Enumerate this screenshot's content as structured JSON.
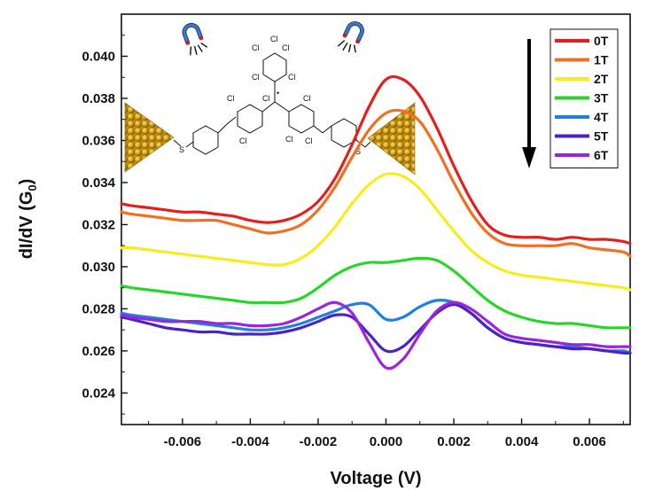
{
  "chart_data": {
    "type": "line",
    "xlabel": "Voltage (V)",
    "ylabel_main": "dI/dV (G",
    "ylabel_sub": "0",
    "ylabel_close": ")",
    "xlim": [
      -0.0078,
      0.0072
    ],
    "ylim": [
      0.0225,
      0.042
    ],
    "x_ticks": [
      -0.006,
      -0.004,
      -0.002,
      0.0,
      0.002,
      0.004,
      0.006
    ],
    "x_tick_labels": [
      "-0.006",
      "-0.004",
      "-0.002",
      "0.000",
      "0.002",
      "0.004",
      "0.006"
    ],
    "y_ticks": [
      0.024,
      0.026,
      0.028,
      0.03,
      0.032,
      0.034,
      0.036,
      0.038,
      0.04
    ],
    "y_tick_labels": [
      "0.024",
      "0.026",
      "0.028",
      "0.030",
      "0.032",
      "0.034",
      "0.036",
      "0.038",
      "0.040"
    ],
    "legend_position": "top-right",
    "arrow": "downward arrow beside legend",
    "x": [
      -0.0078,
      -0.0075,
      -0.007,
      -0.0065,
      -0.006,
      -0.0055,
      -0.005,
      -0.0045,
      -0.004,
      -0.0035,
      -0.003,
      -0.0025,
      -0.002,
      -0.0015,
      -0.001,
      -0.0005,
      0.0,
      0.0005,
      0.001,
      0.0015,
      0.002,
      0.0025,
      0.003,
      0.0035,
      0.004,
      0.0045,
      0.005,
      0.0055,
      0.006,
      0.0065,
      0.007,
      0.0072
    ],
    "series": [
      {
        "name": "0T",
        "color": "#e4201e",
        "values": [
          0.033,
          0.0329,
          0.0328,
          0.0327,
          0.0326,
          0.0326,
          0.0325,
          0.0324,
          0.0322,
          0.0321,
          0.0322,
          0.0325,
          0.0331,
          0.0342,
          0.0358,
          0.0376,
          0.0389,
          0.0389,
          0.0381,
          0.0366,
          0.0348,
          0.0332,
          0.032,
          0.0315,
          0.0314,
          0.0314,
          0.0313,
          0.0314,
          0.0313,
          0.0313,
          0.0312,
          0.0311
        ]
      },
      {
        "name": "1T",
        "color": "#f07022",
        "values": [
          0.0326,
          0.0325,
          0.0324,
          0.0323,
          0.0322,
          0.0322,
          0.0322,
          0.032,
          0.0318,
          0.0316,
          0.0317,
          0.032,
          0.0327,
          0.0338,
          0.0352,
          0.0365,
          0.0373,
          0.0374,
          0.0369,
          0.0356,
          0.034,
          0.0326,
          0.0316,
          0.0311,
          0.031,
          0.031,
          0.031,
          0.0311,
          0.0309,
          0.0308,
          0.0307,
          0.0305
        ]
      },
      {
        "name": "2T",
        "color": "#f9ec1c",
        "values": [
          0.0309,
          0.0309,
          0.0308,
          0.0307,
          0.0306,
          0.0305,
          0.0304,
          0.0303,
          0.0302,
          0.0301,
          0.0301,
          0.0304,
          0.031,
          0.0319,
          0.033,
          0.0339,
          0.0344,
          0.0343,
          0.0337,
          0.0327,
          0.0317,
          0.0308,
          0.0302,
          0.0298,
          0.0296,
          0.0295,
          0.0294,
          0.0293,
          0.0292,
          0.0291,
          0.029,
          0.0289
        ]
      },
      {
        "name": "3T",
        "color": "#2ad52a",
        "values": [
          0.0291,
          0.029,
          0.0289,
          0.0288,
          0.0287,
          0.0286,
          0.0285,
          0.0284,
          0.0283,
          0.0283,
          0.0283,
          0.0285,
          0.029,
          0.0296,
          0.03,
          0.0302,
          0.0302,
          0.0303,
          0.0304,
          0.0303,
          0.0298,
          0.0291,
          0.0284,
          0.0279,
          0.0276,
          0.0274,
          0.0273,
          0.0273,
          0.0272,
          0.0271,
          0.0271,
          0.0271
        ]
      },
      {
        "name": "4T",
        "color": "#2180de",
        "values": [
          0.0278,
          0.0277,
          0.0276,
          0.0275,
          0.0274,
          0.0273,
          0.0272,
          0.0271,
          0.027,
          0.027,
          0.0271,
          0.0273,
          0.0276,
          0.0279,
          0.0282,
          0.0282,
          0.0275,
          0.0276,
          0.0281,
          0.0284,
          0.0283,
          0.0278,
          0.0271,
          0.0266,
          0.0264,
          0.0263,
          0.0262,
          0.0262,
          0.0261,
          0.026,
          0.026,
          0.0259
        ]
      },
      {
        "name": "5T",
        "color": "#4a23c8",
        "values": [
          0.0276,
          0.0275,
          0.0273,
          0.0271,
          0.027,
          0.0269,
          0.0269,
          0.0268,
          0.0268,
          0.0268,
          0.0269,
          0.0271,
          0.0274,
          0.0277,
          0.0276,
          0.0268,
          0.026,
          0.0262,
          0.027,
          0.0278,
          0.0282,
          0.0278,
          0.0271,
          0.0266,
          0.0264,
          0.0263,
          0.0262,
          0.0261,
          0.0261,
          0.026,
          0.0259,
          0.0259
        ]
      },
      {
        "name": "6T",
        "color": "#9b26d9",
        "values": [
          0.0277,
          0.0276,
          0.0275,
          0.0274,
          0.0274,
          0.0274,
          0.0273,
          0.0273,
          0.0272,
          0.0272,
          0.0273,
          0.0276,
          0.028,
          0.0283,
          0.0278,
          0.0264,
          0.0252,
          0.0256,
          0.0268,
          0.0279,
          0.0283,
          0.028,
          0.0274,
          0.0268,
          0.0266,
          0.0265,
          0.0264,
          0.0263,
          0.0263,
          0.0262,
          0.0262,
          0.0262
        ]
      }
    ]
  },
  "inset": {
    "atoms": {
      "chlorine": "Cl",
      "sulfur": "S",
      "radical": "•"
    },
    "icons": [
      "gold-electrode-left",
      "gold-electrode-right",
      "magnet-left-icon",
      "magnet-right-icon"
    ]
  },
  "colors": {
    "gold": "#d4a016",
    "gold_dark": "#8a6408",
    "axis": "#111111"
  }
}
